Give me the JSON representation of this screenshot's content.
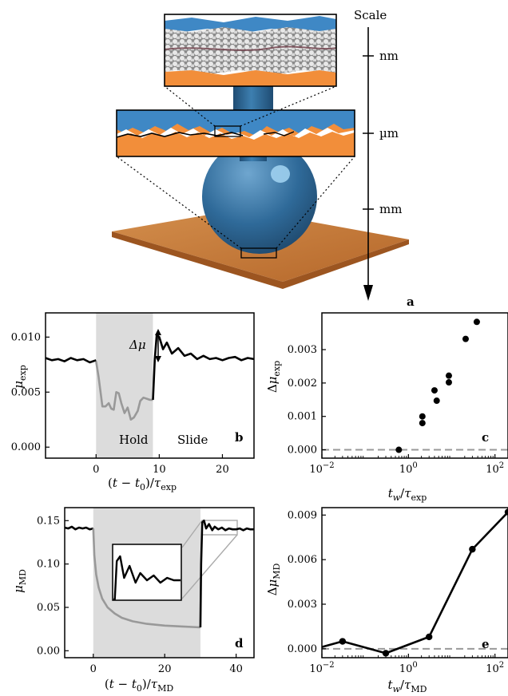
{
  "scale_bar": {
    "title": "Scale",
    "ticks": [
      "nm",
      "µm",
      "mm"
    ],
    "panel_letter": "a"
  },
  "chart_data": [
    {
      "id": "b",
      "type": "line",
      "panel_letter": "b",
      "xlabel": "(t − t0)/τexp",
      "ylabel": "μexp",
      "xlim": [
        -8,
        25
      ],
      "ylim": [
        -0.001,
        0.0122
      ],
      "xticks": [
        0,
        10,
        20
      ],
      "yticks": [
        0.0,
        0.005,
        0.01
      ],
      "ytick_labels": [
        "0.000",
        "0.005",
        "0.010"
      ],
      "shaded_region": [
        0,
        9
      ],
      "region_labels": [
        "Hold",
        "Slide"
      ],
      "annotation": "Δμ",
      "series": [
        {
          "role": "pre-hold",
          "color": "#000000",
          "x": [
            -8,
            -7,
            -6,
            -5,
            -4,
            -3,
            -2,
            -1,
            0
          ],
          "y": [
            0.0081,
            0.0079,
            0.008,
            0.0078,
            0.0081,
            0.0079,
            0.008,
            0.0077,
            0.0079
          ]
        },
        {
          "role": "hold",
          "color": "#999999",
          "x": [
            0,
            0.4,
            1,
            1.5,
            2,
            2.4,
            2.8,
            3.2,
            3.6,
            4,
            4.5,
            5,
            5.5,
            6,
            6.6,
            7,
            7.5,
            8,
            8.5,
            9
          ],
          "y": [
            0.0078,
            0.0064,
            0.0037,
            0.0037,
            0.004,
            0.0035,
            0.0034,
            0.005,
            0.0049,
            0.004,
            0.0031,
            0.0036,
            0.0025,
            0.0027,
            0.0033,
            0.0042,
            0.0045,
            0.0044,
            0.0043,
            0.0043
          ]
        },
        {
          "role": "slide",
          "color": "#000000",
          "x": [
            9,
            9.3,
            9.6,
            10,
            10.6,
            11.2,
            12,
            13,
            14,
            15,
            16,
            17,
            18,
            19,
            20,
            21,
            22,
            23,
            24,
            25
          ],
          "y": [
            0.0043,
            0.008,
            0.0102,
            0.01,
            0.0089,
            0.0095,
            0.0085,
            0.009,
            0.0083,
            0.0085,
            0.008,
            0.0083,
            0.008,
            0.0081,
            0.0079,
            0.0081,
            0.0082,
            0.0079,
            0.0081,
            0.008
          ]
        }
      ]
    },
    {
      "id": "c",
      "type": "scatter",
      "panel_letter": "c",
      "xlabel": "tw/τexp",
      "ylabel": "Δμexp",
      "xscale": "log",
      "xlim": [
        0.01,
        200
      ],
      "ylim": [
        -0.00025,
        0.0041
      ],
      "xticks": [
        0.01,
        1,
        100
      ],
      "xtick_labels": [
        "10−2",
        "100",
        "102"
      ],
      "yticks": [
        0,
        0.001,
        0.002,
        0.003
      ],
      "ytick_labels": [
        "0.000",
        "0.001",
        "0.002",
        "0.003"
      ],
      "zero_line": true,
      "series": [
        {
          "x": [
            0.6,
            2.1,
            2.1,
            4,
            4.5,
            8.6,
            8.6,
            21,
            38
          ],
          "y": [
            0.0,
            0.0008,
            0.001,
            0.00178,
            0.00147,
            0.00202,
            0.00222,
            0.00332,
            0.00383
          ]
        }
      ]
    },
    {
      "id": "d",
      "type": "line",
      "panel_letter": "d",
      "xlabel": "(t − t0)/τMD",
      "ylabel": "μMD",
      "xlim": [
        -8,
        45
      ],
      "ylim": [
        -0.008,
        0.165
      ],
      "xticks": [
        0,
        20,
        40
      ],
      "yticks": [
        0.0,
        0.05,
        0.1,
        0.15
      ],
      "ytick_labels": [
        "0.00",
        "0.05",
        "0.10",
        "0.15"
      ],
      "shaded_region": [
        0,
        30
      ],
      "series": [
        {
          "role": "pre-hold",
          "color": "#000000",
          "x": [
            -8,
            -7,
            -6,
            -5,
            -4,
            -3,
            -2,
            -1,
            0
          ],
          "y": [
            0.142,
            0.141,
            0.143,
            0.14,
            0.142,
            0.141,
            0.142,
            0.14,
            0.141
          ]
        },
        {
          "role": "hold",
          "color": "#999999",
          "x": [
            0,
            0.3,
            0.8,
            1.5,
            2.5,
            4,
            6,
            8,
            11,
            15,
            20,
            25,
            30
          ],
          "y": [
            0.141,
            0.11,
            0.088,
            0.073,
            0.06,
            0.05,
            0.043,
            0.038,
            0.034,
            0.031,
            0.029,
            0.028,
            0.027
          ]
        },
        {
          "role": "slide",
          "color": "#000000",
          "x": [
            30,
            30.2,
            30.5,
            31,
            31.6,
            32.4,
            33.3,
            34,
            35,
            36,
            37,
            38,
            39,
            40,
            41,
            42,
            43,
            44,
            45
          ],
          "y": [
            0.027,
            0.1,
            0.148,
            0.15,
            0.141,
            0.146,
            0.139,
            0.143,
            0.14,
            0.142,
            0.139,
            0.141,
            0.14,
            0.14,
            0.141,
            0.139,
            0.141,
            0.14,
            0.14
          ]
        }
      ],
      "inset": {
        "x_range": [
          30,
          40
        ],
        "y_range": [
          0.132,
          0.152
        ]
      }
    },
    {
      "id": "e",
      "type": "line",
      "panel_letter": "e",
      "xlabel": "tw/τMD",
      "ylabel": "ΔμMD",
      "xscale": "log",
      "xlim": [
        0.01,
        200
      ],
      "ylim": [
        -0.0006,
        0.0095
      ],
      "xticks": [
        0.01,
        1,
        100
      ],
      "xtick_labels": [
        "10−2",
        "100",
        "102"
      ],
      "yticks": [
        0,
        0.003,
        0.006,
        0.009
      ],
      "ytick_labels": [
        "0.000",
        "0.003",
        "0.006",
        "0.009"
      ],
      "zero_line": true,
      "series": [
        {
          "x": [
            0.01,
            0.03,
            0.3,
            3,
            30,
            200
          ],
          "y": [
            0.00012,
            0.0005,
            -0.0003,
            0.0008,
            0.0067,
            0.0092
          ],
          "markers": [
            false,
            true,
            true,
            true,
            true,
            true
          ]
        }
      ]
    }
  ]
}
